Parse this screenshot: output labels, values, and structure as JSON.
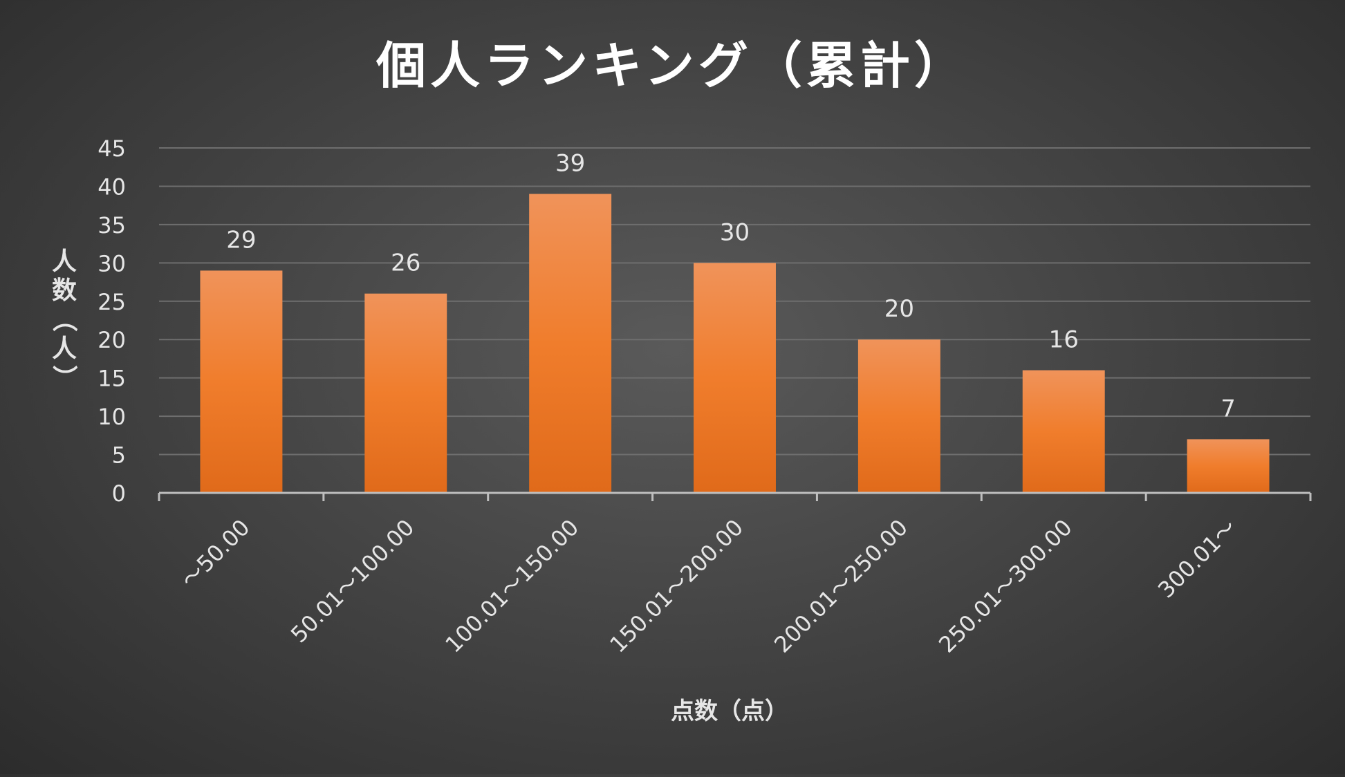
{
  "chart_data": {
    "type": "bar",
    "title": "個人ランキング（累計）",
    "xlabel": "点数（点）",
    "ylabel": "人数（人）",
    "categories": [
      "～50.00",
      "50.01～100.00",
      "100.01～150.00",
      "150.01～200.00",
      "200.01～250.00",
      "250.01～300.00",
      "300.01～"
    ],
    "values": [
      29,
      26,
      39,
      30,
      20,
      16,
      7
    ],
    "ylim": [
      0,
      45
    ],
    "yticks": [
      0,
      5,
      10,
      15,
      20,
      25,
      30,
      35,
      40,
      45
    ],
    "grid": true,
    "legend": "none",
    "data_labels": true,
    "colors": {
      "bar_top": "#F0935A",
      "bar_mid": "#F07D2C",
      "bar_bottom": "#E06A1A",
      "text": "#E6E6E6",
      "title": "#FFFFFF",
      "grid": "#6E6E6E",
      "axis": "#BFBFBF"
    }
  }
}
